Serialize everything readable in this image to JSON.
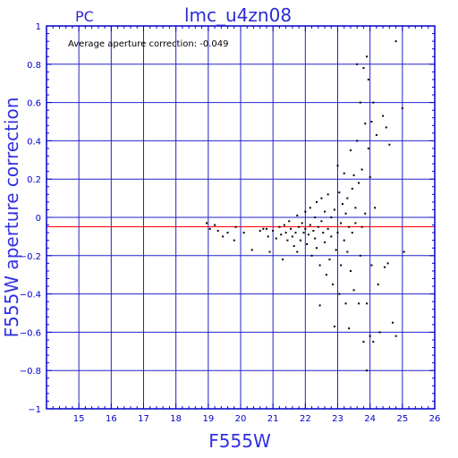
{
  "header": {
    "left": "PC",
    "title": "lmc_u4zn08"
  },
  "annotation": "Average aperture correction:  -0.049",
  "colors": {
    "frame": "#0000cc",
    "grid": "#2222cc",
    "text": "#2b2bd6",
    "mean_line": "#ff0000",
    "points": "#000000"
  },
  "chart_data": {
    "type": "scatter",
    "title": "lmc_u4zn08",
    "xlabel": "F555W",
    "ylabel": "F555W aperture correction",
    "xlim": [
      14,
      26
    ],
    "ylim": [
      -1,
      1
    ],
    "grid": true,
    "x_ticks": [
      15,
      16,
      17,
      18,
      19,
      20,
      21,
      22,
      23,
      24,
      25,
      26
    ],
    "y_ticks": [
      -1,
      -0.8,
      -0.6,
      -0.4,
      -0.2,
      0,
      0.2,
      0.4,
      0.6,
      0.8,
      1
    ],
    "x_tick_labels": [
      "15",
      "16",
      "17",
      "18",
      "19",
      "20",
      "21",
      "22",
      "23",
      "24",
      "25",
      "26"
    ],
    "y_tick_labels": [
      "−1",
      "−0.8",
      "−0.6",
      "−0.4",
      "−0.2",
      "0",
      "0.2",
      "0.4",
      "0.6",
      "0.8",
      "1"
    ],
    "mean_correction": -0.049,
    "points": [
      [
        18.95,
        -0.03
      ],
      [
        19.05,
        -0.06
      ],
      [
        19.2,
        -0.04
      ],
      [
        19.3,
        -0.07
      ],
      [
        19.45,
        -0.1
      ],
      [
        19.6,
        -0.08
      ],
      [
        19.8,
        -0.12
      ],
      [
        19.85,
        -0.05
      ],
      [
        20.1,
        -0.08
      ],
      [
        20.35,
        -0.17
      ],
      [
        20.6,
        -0.07
      ],
      [
        20.7,
        -0.06
      ],
      [
        20.8,
        -0.06
      ],
      [
        20.85,
        -0.1
      ],
      [
        20.9,
        -0.18
      ],
      [
        21.0,
        -0.07
      ],
      [
        21.1,
        -0.11
      ],
      [
        21.2,
        -0.05
      ],
      [
        21.25,
        -0.09
      ],
      [
        21.3,
        -0.22
      ],
      [
        21.35,
        -0.04
      ],
      [
        21.4,
        -0.08
      ],
      [
        21.45,
        -0.12
      ],
      [
        21.5,
        -0.02
      ],
      [
        21.55,
        -0.06
      ],
      [
        21.6,
        -0.1
      ],
      [
        21.65,
        -0.15
      ],
      [
        21.7,
        -0.08
      ],
      [
        21.75,
        0.01
      ],
      [
        21.75,
        -0.18
      ],
      [
        21.8,
        -0.05
      ],
      [
        21.85,
        -0.12
      ],
      [
        21.9,
        -0.03
      ],
      [
        21.95,
        -0.08
      ],
      [
        22.0,
        -0.06
      ],
      [
        22.0,
        0.03
      ],
      [
        22.05,
        -0.14
      ],
      [
        22.1,
        -0.09
      ],
      [
        22.15,
        0.05
      ],
      [
        22.15,
        -0.04
      ],
      [
        22.2,
        -0.2
      ],
      [
        22.25,
        -0.07
      ],
      [
        22.3,
        0.0
      ],
      [
        22.3,
        -0.11
      ],
      [
        22.35,
        0.08
      ],
      [
        22.35,
        -0.16
      ],
      [
        22.4,
        -0.05
      ],
      [
        22.45,
        -0.25
      ],
      [
        22.45,
        -0.46
      ],
      [
        22.5,
        0.1
      ],
      [
        22.5,
        -0.02
      ],
      [
        22.55,
        -0.08
      ],
      [
        22.6,
        -0.13
      ],
      [
        22.6,
        0.03
      ],
      [
        22.65,
        -0.3
      ],
      [
        22.7,
        -0.06
      ],
      [
        22.7,
        0.12
      ],
      [
        22.75,
        -0.22
      ],
      [
        22.8,
        0.0
      ],
      [
        22.8,
        -0.1
      ],
      [
        22.85,
        -0.35
      ],
      [
        22.9,
        -0.57
      ],
      [
        22.9,
        0.04
      ],
      [
        22.95,
        -0.17
      ],
      [
        23.0,
        0.27
      ],
      [
        23.0,
        -0.08
      ],
      [
        23.05,
        -0.4
      ],
      [
        23.05,
        0.13
      ],
      [
        23.1,
        -0.03
      ],
      [
        23.1,
        -0.25
      ],
      [
        23.15,
        0.07
      ],
      [
        23.2,
        -0.12
      ],
      [
        23.2,
        0.23
      ],
      [
        23.25,
        -0.45
      ],
      [
        23.25,
        0.02
      ],
      [
        23.3,
        -0.18
      ],
      [
        23.3,
        0.1
      ],
      [
        23.35,
        -0.05
      ],
      [
        23.35,
        -0.58
      ],
      [
        23.4,
        0.35
      ],
      [
        23.4,
        -0.28
      ],
      [
        23.45,
        0.15
      ],
      [
        23.45,
        -0.08
      ],
      [
        23.5,
        0.22
      ],
      [
        23.5,
        -0.38
      ],
      [
        23.55,
        -0.03
      ],
      [
        23.55,
        0.05
      ],
      [
        23.6,
        0.8
      ],
      [
        23.6,
        0.4
      ],
      [
        23.65,
        -0.45
      ],
      [
        23.65,
        0.18
      ],
      [
        23.7,
        0.6
      ],
      [
        23.7,
        -0.2
      ],
      [
        23.75,
        0.25
      ],
      [
        23.75,
        -0.05
      ],
      [
        23.8,
        0.78
      ],
      [
        23.8,
        -0.65
      ],
      [
        23.85,
        0.49
      ],
      [
        23.85,
        0.02
      ],
      [
        23.9,
        0.84
      ],
      [
        23.9,
        -0.45
      ],
      [
        23.95,
        0.72
      ],
      [
        23.95,
        0.36
      ],
      [
        24.0,
        0.21
      ],
      [
        24.0,
        -0.62
      ],
      [
        24.05,
        0.5
      ],
      [
        24.05,
        -0.25
      ],
      [
        24.1,
        0.6
      ],
      [
        24.1,
        -0.65
      ],
      [
        24.2,
        0.43
      ],
      [
        24.3,
        -0.6
      ],
      [
        24.4,
        0.53
      ],
      [
        24.45,
        -0.26
      ],
      [
        24.5,
        0.47
      ],
      [
        24.55,
        -0.24
      ],
      [
        24.6,
        0.38
      ],
      [
        24.7,
        -0.55
      ],
      [
        24.8,
        -0.62
      ],
      [
        24.8,
        0.92
      ],
      [
        25.0,
        0.57
      ],
      [
        25.05,
        -0.18
      ],
      [
        24.15,
        0.05
      ],
      [
        24.25,
        -0.35
      ],
      [
        23.9,
        -0.8
      ]
    ]
  }
}
